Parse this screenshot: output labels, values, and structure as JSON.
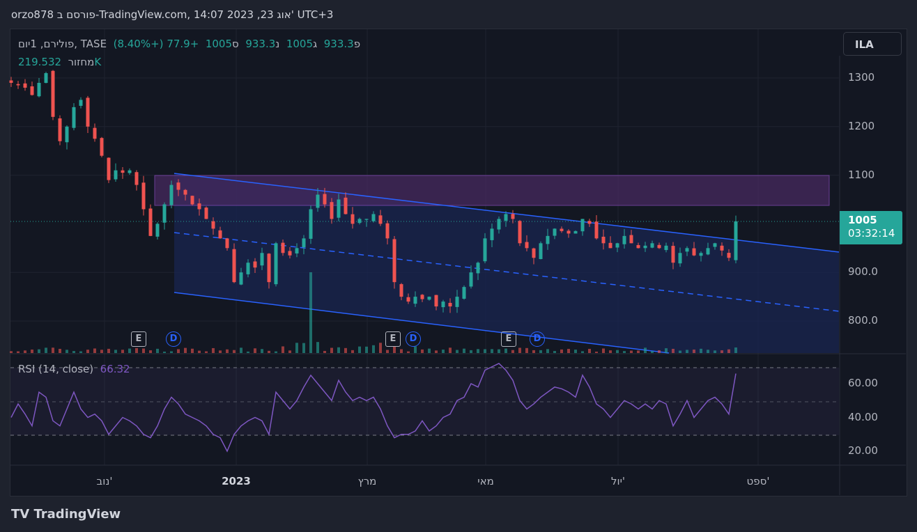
{
  "header": {
    "title": "orzo878 פורסם ב-TradingView.com, 14:07 2023 ,23 אוג' UTC+3"
  },
  "legend": {
    "symbol": "פולירם, 1יום, TASE",
    "o_label": "פ",
    "o": "933.3",
    "h_label": "ג",
    "h": "1005",
    "l_label": "נ",
    "l": "933.3",
    "c_label": "ס",
    "c": "1005",
    "change": "+77.9 (+8.40%)",
    "volume_label": "מחזור",
    "volume": "219.532K"
  },
  "rsi": {
    "label": "RSI (14, close)",
    "value": "66.32"
  },
  "currency": "ILA",
  "price_tag": {
    "price": "1005",
    "countdown": "03:32:14"
  },
  "events": [
    "E",
    "D",
    "E",
    "D",
    "E",
    "D"
  ],
  "branding": "TradingView",
  "colors": {
    "up": "#26a69a",
    "down": "#ef5350",
    "rsi": "#7e57c2",
    "channel": "#2962ff",
    "box": "#7b3fa0"
  },
  "chart_data": {
    "type": "candlestick",
    "price_axis": {
      "ticks": [
        "1300",
        "1200",
        "1100",
        "900.0",
        "800.0"
      ],
      "values": [
        1300,
        1200,
        1100,
        900,
        800
      ]
    },
    "rsi_axis": {
      "ticks": [
        "60.00",
        "40.00",
        "20.00"
      ],
      "values": [
        60,
        40,
        20
      ],
      "bands": [
        30,
        50,
        70
      ]
    },
    "time_axis": [
      "נוב'",
      "2023",
      "מרץ",
      "מאי",
      "יול'",
      "ספט'"
    ],
    "closes": [
      1290,
      1285,
      1280,
      1265,
      1290,
      1310,
      1220,
      1170,
      1200,
      1240,
      1255,
      1200,
      1175,
      1140,
      1090,
      1110,
      1105,
      1110,
      1080,
      1030,
      975,
      1000,
      1040,
      1080,
      1070,
      1060,
      1040,
      1030,
      1010,
      990,
      970,
      950,
      880,
      900,
      920,
      910,
      940,
      880,
      960,
      940,
      935,
      950,
      970,
      1030,
      1060,
      1040,
      1010,
      1050,
      1020,
      1000,
      1010,
      1010,
      1020,
      1000,
      970,
      880,
      850,
      840,
      850,
      845,
      850,
      830,
      840,
      830,
      850,
      870,
      900,
      920,
      970,
      990,
      1010,
      1020,
      1010,
      960,
      950,
      930,
      960,
      975,
      990,
      985,
      980,
      985,
      1010,
      1000,
      970,
      960,
      950,
      960,
      975,
      960,
      950,
      955,
      960,
      950,
      955,
      920,
      940,
      950,
      935,
      940,
      950,
      960,
      945,
      930,
      1005
    ],
    "rsi": [
      40,
      48,
      42,
      35,
      55,
      52,
      38,
      35,
      45,
      55,
      45,
      40,
      42,
      38,
      30,
      35,
      40,
      38,
      35,
      30,
      28,
      35,
      45,
      52,
      48,
      42,
      40,
      38,
      35,
      30,
      28,
      20,
      30,
      35,
      38,
      40,
      38,
      30,
      55,
      50,
      45,
      50,
      58,
      65,
      60,
      55,
      50,
      62,
      55,
      50,
      52,
      50,
      52,
      45,
      35,
      28,
      30,
      30,
      32,
      38,
      32,
      35,
      40,
      42,
      50,
      52,
      60,
      58,
      68,
      70,
      72,
      68,
      62,
      50,
      45,
      48,
      52,
      55,
      58,
      57,
      55,
      52,
      65,
      58,
      48,
      45,
      40,
      45,
      50,
      48,
      45,
      48,
      45,
      50,
      48,
      35,
      42,
      50,
      40,
      45,
      50,
      52,
      48,
      42,
      66
    ]
  }
}
